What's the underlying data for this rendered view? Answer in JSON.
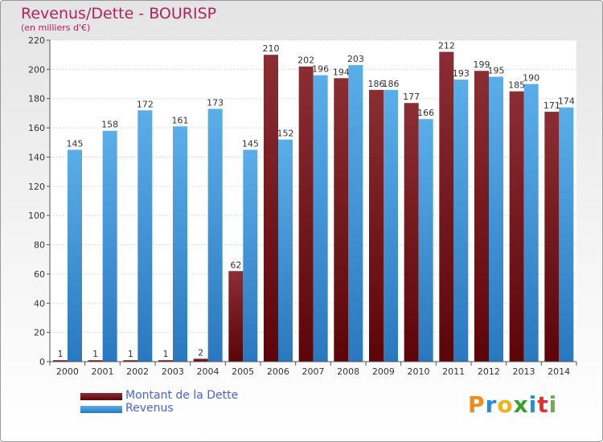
{
  "header": {
    "title": "Revenus/Dette - BOURISP",
    "subtitle": "(en milliers d'€)"
  },
  "legend": {
    "debt_label": "Montant de la Dette",
    "revenue_label": "Revenus"
  },
  "logo": {
    "text": "Proxiti",
    "colors": [
      "#f08a1c",
      "#2e8bd0",
      "#f0b21c",
      "#3aa035",
      "#2e8bd0",
      "#e03030",
      "#6ab04c"
    ]
  },
  "colors": {
    "debt": "#6b0f14",
    "revenue": "#2b7fc7"
  },
  "chart_data": {
    "type": "bar",
    "categories": [
      "2000",
      "2001",
      "2002",
      "2003",
      "2004",
      "2005",
      "2006",
      "2007",
      "2008",
      "2009",
      "2010",
      "2011",
      "2012",
      "2013",
      "2014"
    ],
    "series": [
      {
        "name": "Montant de la Dette",
        "values": [
          1,
          1,
          1,
          1,
          2,
          62,
          210,
          202,
          194,
          186,
          177,
          212,
          199,
          185,
          171
        ]
      },
      {
        "name": "Revenus",
        "values": [
          145,
          158,
          172,
          161,
          173,
          145,
          152,
          196,
          203,
          186,
          166,
          193,
          195,
          190,
          174
        ]
      }
    ],
    "title": "Revenus/Dette - BOURISP",
    "ylabel": "(en milliers d'€)",
    "ylim": [
      0,
      220
    ],
    "yticks": [
      0,
      20,
      40,
      60,
      80,
      100,
      120,
      140,
      160,
      180,
      200,
      220
    ],
    "grid": true,
    "legend": "bottom-left"
  }
}
